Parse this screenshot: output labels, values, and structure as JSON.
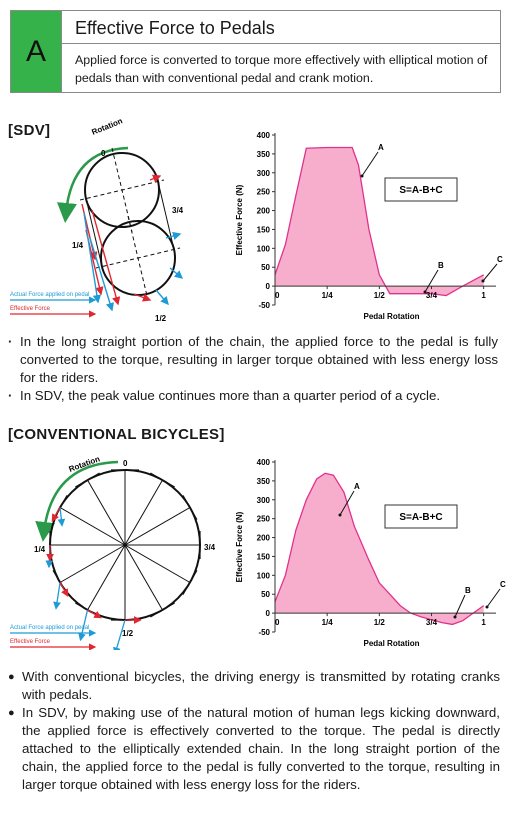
{
  "header": {
    "badge": "A",
    "title": "Effective Force to Pedals",
    "subtitle": "Applied force is converted to torque more effectively with elliptical motion of pedals than with conventional pedal and crank motion."
  },
  "sdv": {
    "heading": "[SDV]",
    "diagram": {
      "rotation": "Rotation",
      "labels": [
        "0",
        "3/4",
        "1/4",
        "1/2"
      ],
      "legend": [
        "Actual Force applied on pedal",
        "Effective Force"
      ]
    },
    "bullets": [
      "In the long straight portion of the chain, the applied force to the pedal is fully converted to the torque, resulting in larger torque obtained with less energy loss for the riders.",
      "In SDV, the peak value continues more than a quarter period of a cycle."
    ]
  },
  "conventional": {
    "heading": "[CONVENTIONAL BICYCLES]",
    "diagram": {
      "rotation": "Rotation",
      "labels": [
        "0",
        "1/4",
        "3/4",
        "1/2"
      ],
      "legend": [
        "Actual Force applied on pedal",
        "Effective Force"
      ]
    },
    "bullets": [
      "With conventional bicycles, the driving energy is transmitted by rotating cranks with pedals.",
      "In SDV, by making use of the natural motion of human legs kicking downward, the applied force is effectively converted to the torque. The pedal is directly attached to the elliptically extended chain. In the long straight portion of the chain, the applied force to the pedal is fully converted to the torque, resulting in larger torque obtained with less energy loss for the riders."
    ]
  },
  "chart_data": [
    {
      "type": "area",
      "xlabel": "Pedal Rotation",
      "ylabel": "Effective Force (N)",
      "x": [
        0,
        0.05,
        0.1,
        0.15,
        0.25,
        0.37,
        0.4,
        0.45,
        0.5,
        0.55,
        0.65,
        0.75,
        0.82,
        0.9,
        1
      ],
      "values": [
        30,
        110,
        240,
        365,
        367,
        367,
        320,
        150,
        30,
        -20,
        -20,
        -20,
        -25,
        0,
        30
      ],
      "color": "#f7aecd",
      "line_color": "#e0328c",
      "xlim": [
        0,
        1.04
      ],
      "ylim": [
        -50,
        400
      ],
      "xticks": [
        0,
        {
          "value": 0.25,
          "label": "1/4"
        },
        {
          "value": 0.5,
          "label": "1/2"
        },
        {
          "value": 0.75,
          "label": "3/4"
        },
        1
      ],
      "yticks": [
        -50,
        0,
        50,
        100,
        150,
        200,
        250,
        300,
        350,
        400
      ],
      "annotations": [
        "A",
        "B",
        "C"
      ],
      "formula": "S=A-B+C"
    },
    {
      "type": "area",
      "xlabel": "Pedal Rotation",
      "ylabel": "Effective Force (N)",
      "x": [
        0,
        0.05,
        0.1,
        0.15,
        0.2,
        0.24,
        0.28,
        0.33,
        0.38,
        0.45,
        0.5,
        0.55,
        0.6,
        0.65,
        0.7,
        0.8,
        0.85,
        0.9,
        0.95,
        1
      ],
      "values": [
        30,
        100,
        220,
        300,
        355,
        370,
        365,
        320,
        230,
        140,
        80,
        50,
        20,
        0,
        -10,
        -25,
        -30,
        -20,
        0,
        20
      ],
      "color": "#f7aecd",
      "line_color": "#e0328c",
      "xlim": [
        0,
        1.04
      ],
      "ylim": [
        -50,
        400
      ],
      "xticks": [
        0,
        {
          "value": 0.25,
          "label": "1/4"
        },
        {
          "value": 0.5,
          "label": "1/2"
        },
        {
          "value": 0.75,
          "label": "3/4"
        },
        1
      ],
      "yticks": [
        -50,
        0,
        50,
        100,
        150,
        200,
        250,
        300,
        350,
        400
      ],
      "annotations": [
        "A",
        "B",
        "C"
      ],
      "formula": "S=A-B+C"
    }
  ]
}
